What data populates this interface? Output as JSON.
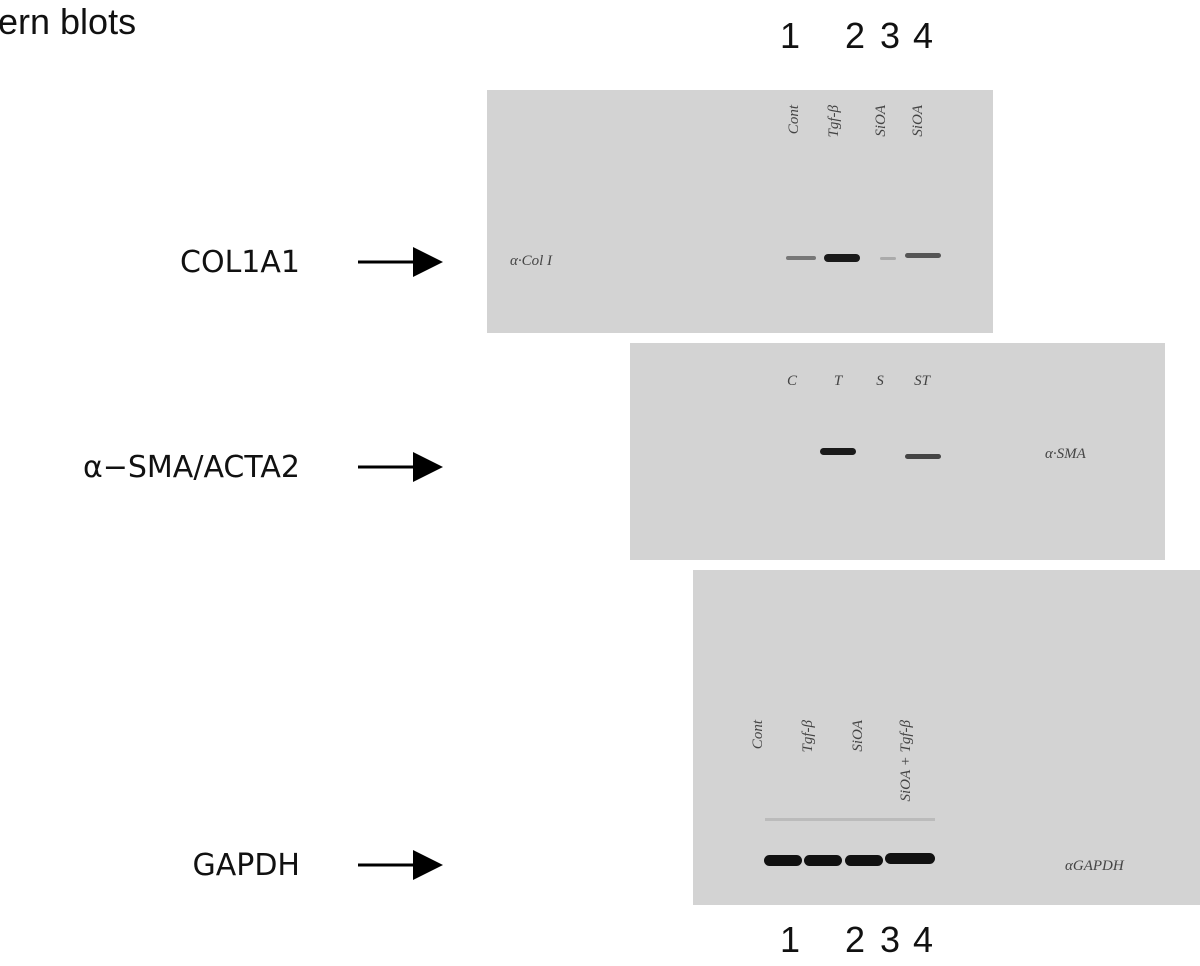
{
  "header": {
    "title": "ern blots"
  },
  "lane_numbers_top": [
    "1",
    "2",
    "3",
    "4"
  ],
  "blots": [
    {
      "label": "COL1A1",
      "antibody": "α·Col I",
      "lanes": [
        "Cont",
        "Tgf-β",
        "SiOA",
        "SiOA"
      ]
    },
    {
      "label": "α−SMA/ACTA2",
      "antibody": "α·SMA",
      "lanes": [
        "C",
        "T",
        "S",
        "ST"
      ]
    },
    {
      "label": "GAPDH",
      "antibody": "αGAPDH",
      "lanes": [
        "Cont",
        "Tgf-β",
        "SiOA",
        "SiOA + Tgf-β"
      ]
    }
  ],
  "lane_numbers_bottom": [
    "1",
    "2",
    "3",
    "4"
  ]
}
